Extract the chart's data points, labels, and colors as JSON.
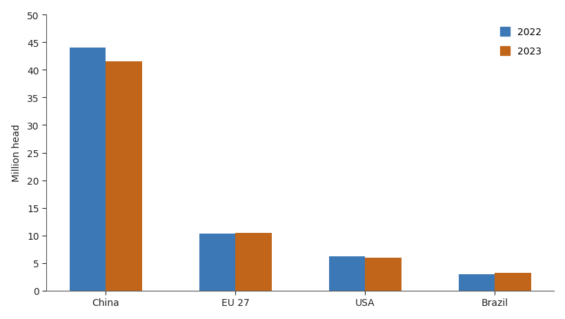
{
  "categories": [
    "China",
    "EU 27",
    "USA",
    "Brazil"
  ],
  "values_2022": [
    44.0,
    10.4,
    6.2,
    3.0
  ],
  "values_2023": [
    41.5,
    10.5,
    6.0,
    3.2
  ],
  "color_2022": "#3C78B5",
  "color_2023": "#C0651A",
  "ylabel": "Million head",
  "ylim": [
    0,
    50
  ],
  "yticks": [
    0,
    5,
    10,
    15,
    20,
    25,
    30,
    35,
    40,
    45,
    50
  ],
  "legend_2022": "2022",
  "legend_2023": "2023",
  "bar_width": 0.28,
  "background_color": "#ffffff",
  "figsize": [
    8.2,
    4.64
  ],
  "dpi": 100
}
